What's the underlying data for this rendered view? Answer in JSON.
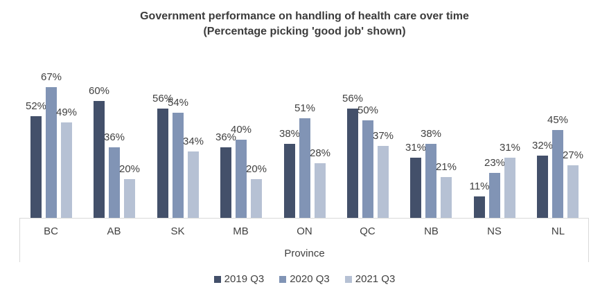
{
  "title": {
    "line1": "Government performance on handling of health care over time",
    "line2": "(Percentage picking 'good job' shown)"
  },
  "chart_data": {
    "type": "bar",
    "title": "Government performance on handling of health care over time (Percentage picking 'good job' shown)",
    "categories": [
      "BC",
      "AB",
      "SK",
      "MB",
      "ON",
      "QC",
      "NB",
      "NS",
      "NL"
    ],
    "series": [
      {
        "name": "2019 Q3",
        "color": "#43506a",
        "values": [
          52,
          60,
          56,
          36,
          38,
          56,
          31,
          11,
          32
        ]
      },
      {
        "name": "2020 Q3",
        "color": "#8194b5",
        "values": [
          67,
          36,
          54,
          40,
          51,
          50,
          38,
          23,
          45
        ]
      },
      {
        "name": "2021 Q3",
        "color": "#b6c1d4",
        "values": [
          49,
          20,
          34,
          20,
          28,
          37,
          21,
          31,
          27
        ]
      }
    ],
    "xlabel": "Province",
    "ylabel": "",
    "ylim": [
      0,
      100
    ],
    "value_suffix": "%",
    "data_labels": true,
    "legend_position": "bottom",
    "grid": false
  },
  "colors": {
    "background": "#ffffff",
    "axis_line": "#d9d9d9",
    "text": "#404040",
    "title_text": "#3b3b3b"
  }
}
